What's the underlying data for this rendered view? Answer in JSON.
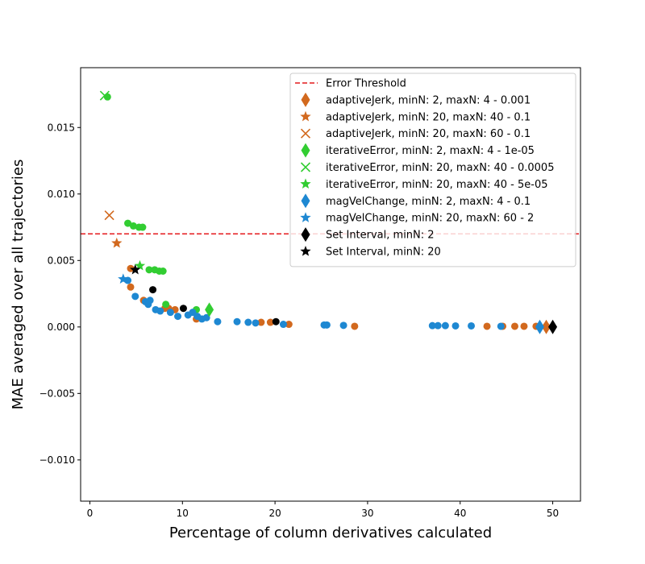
{
  "chart_data": {
    "type": "scatter",
    "xlabel": "Percentage of column derivatives calculated",
    "ylabel": "MAE averaged over all trajectories",
    "xlim": [
      -1,
      53
    ],
    "ylim": [
      -0.0131,
      0.0195
    ],
    "xticks": [
      0,
      10,
      20,
      30,
      40,
      50
    ],
    "yticks": [
      -0.01,
      -0.005,
      0.0,
      0.005,
      0.01,
      0.015
    ],
    "xtick_labels": [
      "0",
      "10",
      "20",
      "30",
      "40",
      "50"
    ],
    "ytick_labels": [
      "−0.010",
      "−0.005",
      "0.000",
      "0.005",
      "0.010",
      "0.015"
    ],
    "grid": false,
    "legend_position": "top-right",
    "threshold": {
      "name": "Error Threshold",
      "y": 0.007,
      "color": "#e41a1c",
      "style": "dashed"
    },
    "series": [
      {
        "name": "adaptiveJerk, minN: 2, maxN: 4 - 0.001",
        "color": "#d2691e",
        "marker": "thin_diamond",
        "points": [
          [
            49.3,
            0.0
          ]
        ],
        "dots": [
          [
            4.4,
            0.0044
          ],
          [
            4.4,
            0.003
          ],
          [
            5.8,
            0.002
          ],
          [
            8.1,
            0.0014
          ],
          [
            8.5,
            0.0014
          ],
          [
            9.2,
            0.0013
          ],
          [
            11.5,
            0.0006
          ],
          [
            18.5,
            0.00035
          ],
          [
            19.5,
            0.00035
          ],
          [
            21.5,
            0.0002
          ],
          [
            28.6,
            5e-05
          ],
          [
            42.9,
            5e-05
          ],
          [
            44.6,
            5e-05
          ],
          [
            45.9,
            5e-05
          ],
          [
            46.9,
            5e-05
          ],
          [
            48.2,
            5e-05
          ],
          [
            49.3,
            5e-05
          ]
        ]
      },
      {
        "name": "adaptiveJerk, minN: 20, maxN: 40 - 0.1",
        "color": "#d2691e",
        "marker": "star",
        "points": [
          [
            2.9,
            0.0063
          ]
        ]
      },
      {
        "name": "adaptiveJerk, minN: 20, maxN: 60 - 0.1",
        "color": "#d2691e",
        "marker": "x",
        "points": [
          [
            2.1,
            0.0084
          ]
        ]
      },
      {
        "name": "iterativeError, minN: 2, maxN: 4 - 1e-05",
        "color": "#32cd32",
        "marker": "thin_diamond",
        "points": [
          [
            12.9,
            0.0013
          ]
        ],
        "dots": [
          [
            1.9,
            0.0173
          ],
          [
            4.1,
            0.0078
          ],
          [
            4.7,
            0.0076
          ],
          [
            5.3,
            0.0075
          ],
          [
            5.7,
            0.0075
          ],
          [
            6.4,
            0.0043
          ],
          [
            7.0,
            0.0043
          ],
          [
            7.5,
            0.0042
          ],
          [
            7.9,
            0.0042
          ],
          [
            8.2,
            0.0017
          ],
          [
            11.5,
            0.0013
          ]
        ]
      },
      {
        "name": "iterativeError, minN: 20, maxN: 40 - 0.0005",
        "color": "#32cd32",
        "marker": "x",
        "points": [
          [
            1.6,
            0.0174
          ]
        ]
      },
      {
        "name": "iterativeError, minN: 20, maxN: 40 - 5e-05",
        "color": "#32cd32",
        "marker": "star",
        "points": [
          [
            5.4,
            0.0046
          ]
        ]
      },
      {
        "name": "magVelChange, minN: 2, maxN: 4 - 0.1",
        "color": "#1e88d2",
        "marker": "thin_diamond",
        "points": [
          [
            48.6,
            0.0
          ]
        ],
        "dots": [
          [
            4.1,
            0.0035
          ],
          [
            4.9,
            0.0023
          ],
          [
            6.0,
            0.0019
          ],
          [
            6.3,
            0.0017
          ],
          [
            6.5,
            0.002
          ],
          [
            7.1,
            0.0013
          ],
          [
            7.6,
            0.0012
          ],
          [
            8.7,
            0.0011
          ],
          [
            9.5,
            0.0008
          ],
          [
            10.6,
            0.0009
          ],
          [
            11.1,
            0.0011
          ],
          [
            11.6,
            0.0008
          ],
          [
            12.1,
            0.0006
          ],
          [
            12.6,
            0.0007
          ],
          [
            13.8,
            0.0004
          ],
          [
            15.9,
            0.0004
          ],
          [
            17.1,
            0.00035
          ],
          [
            17.9,
            0.0003
          ],
          [
            20.9,
            0.0002
          ],
          [
            25.3,
            0.00015
          ],
          [
            25.6,
            0.00015
          ],
          [
            27.4,
            0.00012
          ],
          [
            37.0,
            0.0001
          ],
          [
            37.6,
            0.0001
          ],
          [
            38.4,
            0.0001
          ],
          [
            39.5,
            8e-05
          ],
          [
            41.2,
            8e-05
          ],
          [
            44.4,
            5e-05
          ]
        ]
      },
      {
        "name": "magVelChange, minN: 20, maxN: 60 - 2",
        "color": "#1e88d2",
        "marker": "star",
        "points": [
          [
            3.6,
            0.0036
          ]
        ]
      },
      {
        "name": "Set Interval, minN: 2",
        "color": "#000000",
        "marker": "thin_diamond",
        "points": [
          [
            50.0,
            0.0
          ]
        ],
        "dots": [
          [
            6.8,
            0.0028
          ],
          [
            10.1,
            0.0014
          ],
          [
            20.1,
            0.0004
          ]
        ]
      },
      {
        "name": "Set Interval, minN: 20",
        "color": "#000000",
        "marker": "star",
        "points": [
          [
            4.9,
            0.0043
          ]
        ]
      }
    ]
  }
}
